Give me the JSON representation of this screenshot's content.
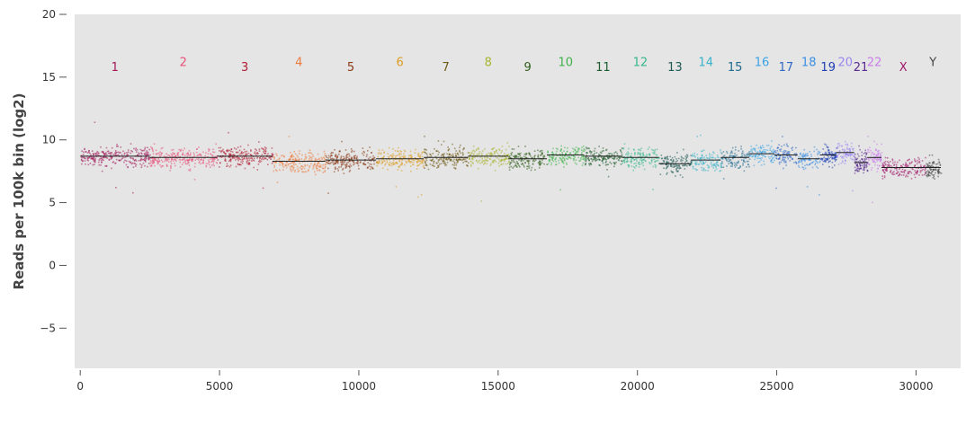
{
  "chart_data": {
    "type": "scatter",
    "title": "",
    "xlabel": "",
    "ylabel": "Reads per 100k bin (log2)",
    "xlim": [
      -200,
      31600
    ],
    "ylim": [
      -8.2,
      20
    ],
    "x_ticks": [
      0,
      5000,
      10000,
      15000,
      20000,
      25000,
      30000
    ],
    "y_ticks": [
      20,
      15,
      10,
      5,
      0,
      -5
    ],
    "x_tick_labels": [
      "0",
      "5000",
      "10000",
      "15000",
      "20000",
      "25000",
      "30000"
    ],
    "y_tick_labels": [
      "20",
      "15",
      "10",
      "5",
      "0",
      "−5"
    ],
    "grid": false,
    "background": "#e5e5e5",
    "segment_line_color": "#222222",
    "chromosomes": [
      {
        "name": "1",
        "start": 0,
        "end": 2490,
        "median": 8.7,
        "color": "#a3195b"
      },
      {
        "name": "2",
        "start": 2490,
        "end": 4910,
        "median": 8.6,
        "color": "#e8517a"
      },
      {
        "name": "3",
        "start": 4910,
        "end": 6900,
        "median": 8.7,
        "color": "#b01e33"
      },
      {
        "name": "4",
        "start": 6900,
        "end": 8800,
        "median": 8.3,
        "color": "#ec7a3b"
      },
      {
        "name": "5",
        "start": 8800,
        "end": 10620,
        "median": 8.4,
        "color": "#8b3a14"
      },
      {
        "name": "6",
        "start": 10620,
        "end": 12330,
        "median": 8.5,
        "color": "#dc9c22"
      },
      {
        "name": "7",
        "start": 12330,
        "end": 13920,
        "median": 8.6,
        "color": "#6f5a14"
      },
      {
        "name": "8",
        "start": 13920,
        "end": 15370,
        "median": 8.7,
        "color": "#a8b52e"
      },
      {
        "name": "9",
        "start": 15370,
        "end": 16750,
        "median": 8.5,
        "color": "#2e5e1a"
      },
      {
        "name": "10",
        "start": 16750,
        "end": 18090,
        "median": 8.8,
        "color": "#3fb24a"
      },
      {
        "name": "11",
        "start": 18090,
        "end": 19440,
        "median": 8.7,
        "color": "#1e5c2b"
      },
      {
        "name": "12",
        "start": 19440,
        "end": 20770,
        "median": 8.6,
        "color": "#36b88a"
      },
      {
        "name": "13",
        "start": 20770,
        "end": 21920,
        "median": 8.1,
        "color": "#1c5a55"
      },
      {
        "name": "14",
        "start": 21920,
        "end": 22990,
        "median": 8.4,
        "color": "#38b3c9"
      },
      {
        "name": "15",
        "start": 22990,
        "end": 24010,
        "median": 8.6,
        "color": "#1f6a8f"
      },
      {
        "name": "16",
        "start": 24010,
        "end": 24920,
        "median": 8.9,
        "color": "#3aa4e6"
      },
      {
        "name": "17",
        "start": 24920,
        "end": 25750,
        "median": 8.8,
        "color": "#2f67c4"
      },
      {
        "name": "18",
        "start": 25750,
        "end": 26550,
        "median": 8.5,
        "color": "#3b8fe3"
      },
      {
        "name": "19",
        "start": 26550,
        "end": 27140,
        "median": 8.8,
        "color": "#1f3fb6"
      },
      {
        "name": "20",
        "start": 27140,
        "end": 27780,
        "median": 9.0,
        "color": "#9b86f0"
      },
      {
        "name": "21",
        "start": 27780,
        "end": 28250,
        "median": 8.2,
        "color": "#5a2a8f"
      },
      {
        "name": "22",
        "start": 28250,
        "end": 28760,
        "median": 8.6,
        "color": "#c97de8"
      },
      {
        "name": "X",
        "start": 28760,
        "end": 30320,
        "median": 7.8,
        "color": "#a1176b"
      },
      {
        "name": "Y",
        "start": 30320,
        "end": 30890,
        "median": 7.8,
        "color": "#444444"
      }
    ]
  }
}
